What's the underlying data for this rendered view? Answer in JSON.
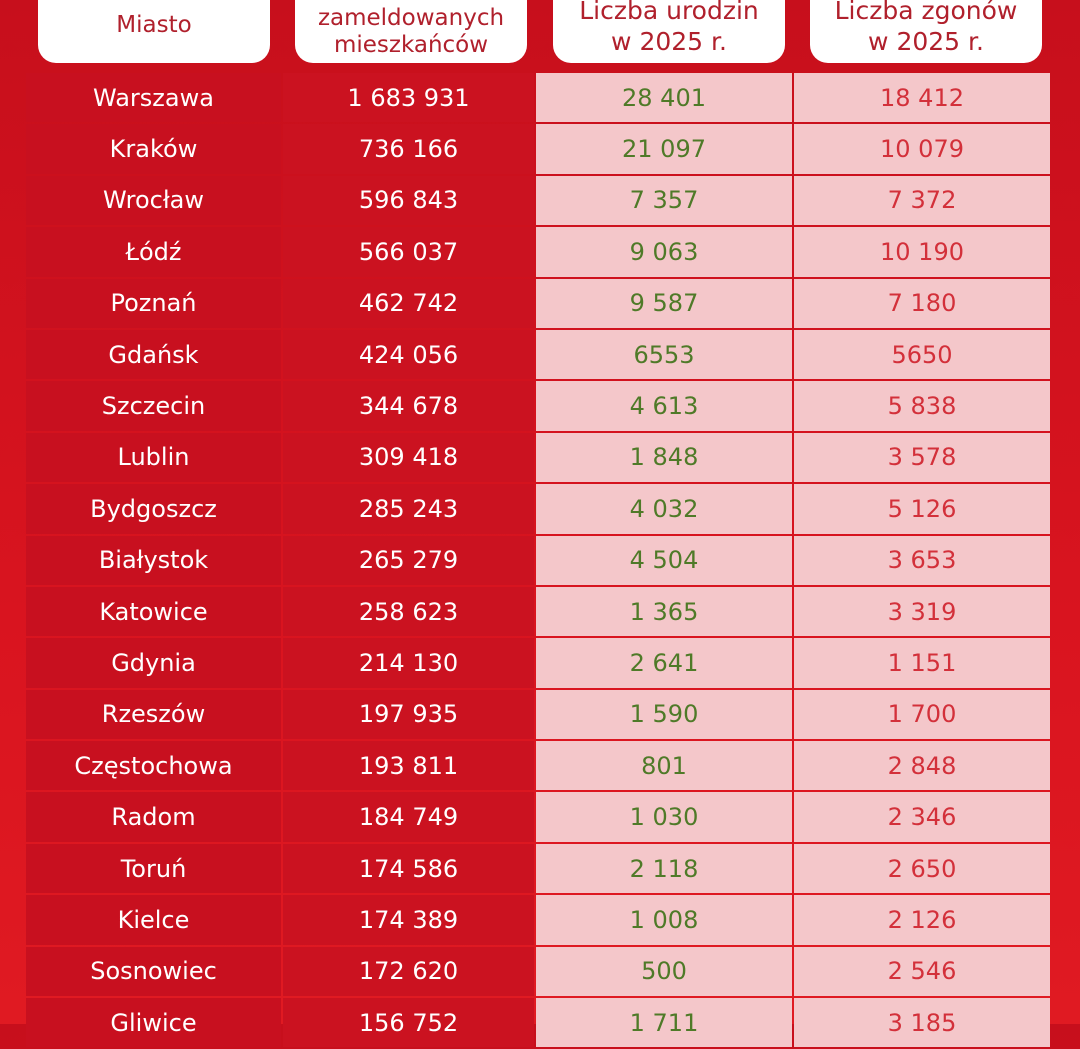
{
  "chart_data": {
    "type": "table",
    "columns": [
      "Miasto",
      "Liczba zameldowanych mieszkańców",
      "Liczba urodzin w 2025 r.",
      "Liczba zgonów w 2025 r."
    ],
    "rows": [
      [
        "Warszawa",
        "1 683 931",
        "28 401",
        "18 412"
      ],
      [
        "Kraków",
        "736 166",
        "21 097",
        "10 079"
      ],
      [
        "Wrocław",
        "596 843",
        "7 357",
        "7 372"
      ],
      [
        "Łódź",
        "566 037",
        "9 063",
        "10 190"
      ],
      [
        "Poznań",
        "462 742",
        "9 587",
        "7 180"
      ],
      [
        "Gdańsk",
        "424 056",
        "6553",
        "5650"
      ],
      [
        "Szczecin",
        "344 678",
        "4 613",
        "5 838"
      ],
      [
        "Lublin",
        "309 418",
        "1 848",
        "3 578"
      ],
      [
        "Bydgoszcz",
        "285 243",
        "4 032",
        "5 126"
      ],
      [
        "Białystok",
        "265 279",
        "4 504",
        "3 653"
      ],
      [
        "Katowice",
        "258 623",
        "1 365",
        "3 319"
      ],
      [
        "Gdynia",
        "214 130",
        "2 641",
        "1 151"
      ],
      [
        "Rzeszów",
        "197 935",
        "1 590",
        "1 700"
      ],
      [
        "Częstochowa",
        "193 811",
        "801",
        "2 848"
      ],
      [
        "Radom",
        "184 749",
        "1 030",
        "2 346"
      ],
      [
        "Toruń",
        "174 586",
        "2 118",
        "2 650"
      ],
      [
        "Kielce",
        "174 389",
        "1 008",
        "2 126"
      ],
      [
        "Sosnowiec",
        "172 620",
        "500",
        "2 546"
      ],
      [
        "Gliwice",
        "156 752",
        "1 711",
        "3 185"
      ]
    ],
    "colors": {
      "background": "#d5121f",
      "city_cells": "#c8101f",
      "data_cells_light": "#f4c7ca",
      "births_text": "#4f7a28",
      "deaths_text": "#d3303a"
    }
  }
}
